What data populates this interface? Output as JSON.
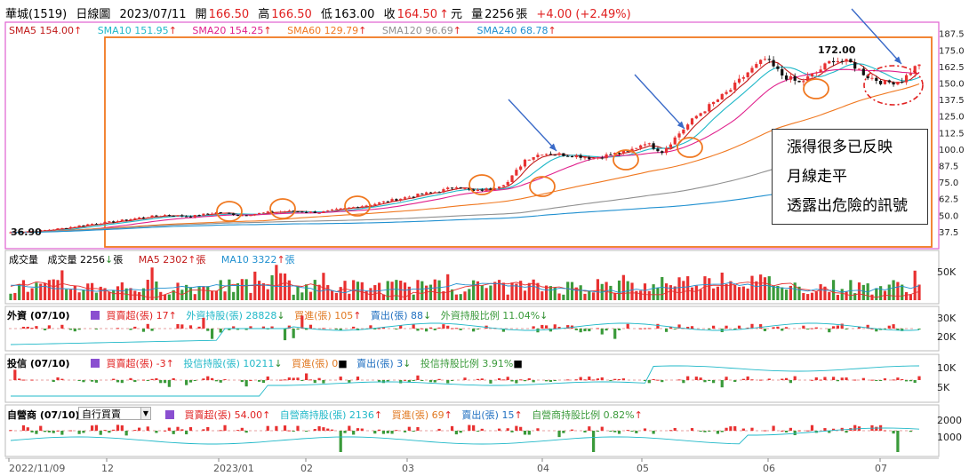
{
  "header": {
    "name": "華城(1519)",
    "chart_kind": "日線圖",
    "date": "2023/07/11",
    "open_label": "開",
    "open": "166.50",
    "high_label": "高",
    "high": "166.50",
    "low_label": "低",
    "low": "163.00",
    "close_label": "收",
    "close": "164.50",
    "unit": "元",
    "volume_label": "量",
    "volume": "2256",
    "volume_unit": "張",
    "change": "+4.00 (+2.49%)"
  },
  "ma_legend": [
    {
      "text": "SMA5 154.00",
      "color": "#c01818"
    },
    {
      "text": "SMA10 151.95",
      "color": "#20b8c8"
    },
    {
      "text": "SMA20 154.25",
      "color": "#e0208c"
    },
    {
      "text": "SMA60 129.79",
      "color": "#f07820"
    },
    {
      "text": "SMA120 96.69",
      "color": "#909090"
    },
    {
      "text": "SMA240 68.78",
      "color": "#2090d0"
    }
  ],
  "vol_legend": {
    "title": "成交量",
    "v1": "成交量 2256",
    "v1_unit": "張",
    "v2": "MA5 2302",
    "v2_unit": "張",
    "v3": "MA10 3322",
    "v3_unit": "張"
  },
  "foreign_legend": {
    "title": "外資 (07/10)",
    "items": [
      "買賣超(張) 17",
      "外資持股(張) 28828",
      "買進(張) 105",
      "賣出(張) 88",
      "外資持股比例 11.04%"
    ]
  },
  "trust_legend": {
    "title": "投信 (07/10)",
    "items": [
      "買賣超(張) -3",
      "投信持股(張) 10211",
      "買進(張) 0",
      "賣出(張) 3",
      "投信持股比例 3.91%"
    ]
  },
  "dealer_legend": {
    "title": "自營商 (07/10)",
    "select_value": "自行買賣",
    "items": [
      "買賣超(張) 54.00",
      "自營商持股(張) 2136",
      "買進(張) 69",
      "賣出(張) 15",
      "自營商持股比例 0.82%"
    ]
  },
  "annotation": {
    "line1": "漲得很多已反映",
    "line2": "月線走平",
    "line3": "透露出危險的訊號"
  },
  "chart_data": {
    "type": "candlestick",
    "price_axis_ticks": [
      "187.5",
      "175.0",
      "162.5",
      "150.0",
      "137.5",
      "125.0",
      "112.5",
      "100.0",
      "87.5",
      "75.0",
      "62.5",
      "50.0",
      "37.5"
    ],
    "price_range": [
      30,
      190
    ],
    "max_label": "172.00",
    "min_label": "36.90",
    "x_ticks": [
      "2022/11/09",
      "12",
      "2023/01",
      "02",
      "03",
      "04",
      "05",
      "06",
      "07"
    ],
    "vol_axis_ticks": [
      "50K"
    ],
    "foreign_axis_ticks": [
      "30K",
      "20K"
    ],
    "trust_axis_ticks": [
      "10K",
      "5K"
    ],
    "dealer_axis_ticks": [
      "2000",
      "1000"
    ],
    "price_points": [
      [
        0,
        37
      ],
      [
        6,
        38
      ],
      [
        12,
        40
      ],
      [
        18,
        43
      ],
      [
        24,
        45
      ],
      [
        30,
        48
      ],
      [
        36,
        50
      ],
      [
        42,
        49
      ],
      [
        48,
        52
      ],
      [
        54,
        50
      ],
      [
        60,
        52
      ],
      [
        66,
        53
      ],
      [
        72,
        52
      ],
      [
        78,
        55
      ],
      [
        84,
        58
      ],
      [
        90,
        62
      ],
      [
        96,
        66
      ],
      [
        100,
        68
      ],
      [
        104,
        72
      ],
      [
        108,
        68
      ],
      [
        112,
        70
      ],
      [
        116,
        75
      ],
      [
        120,
        92
      ],
      [
        124,
        97
      ],
      [
        128,
        96
      ],
      [
        132,
        95
      ],
      [
        136,
        93
      ],
      [
        140,
        96
      ],
      [
        144,
        98
      ],
      [
        148,
        105
      ],
      [
        152,
        98
      ],
      [
        156,
        112
      ],
      [
        160,
        125
      ],
      [
        164,
        135
      ],
      [
        168,
        145
      ],
      [
        172,
        158
      ],
      [
        176,
        168
      ],
      [
        180,
        156
      ],
      [
        184,
        150
      ],
      [
        188,
        158
      ],
      [
        192,
        168
      ],
      [
        196,
        165
      ],
      [
        200,
        155
      ],
      [
        204,
        150
      ],
      [
        208,
        152
      ],
      [
        212,
        165
      ]
    ],
    "colors": {
      "up": "#e83030",
      "down": "#111111",
      "vol_up": "#e83030",
      "vol_down": "#3a9a3a"
    }
  }
}
